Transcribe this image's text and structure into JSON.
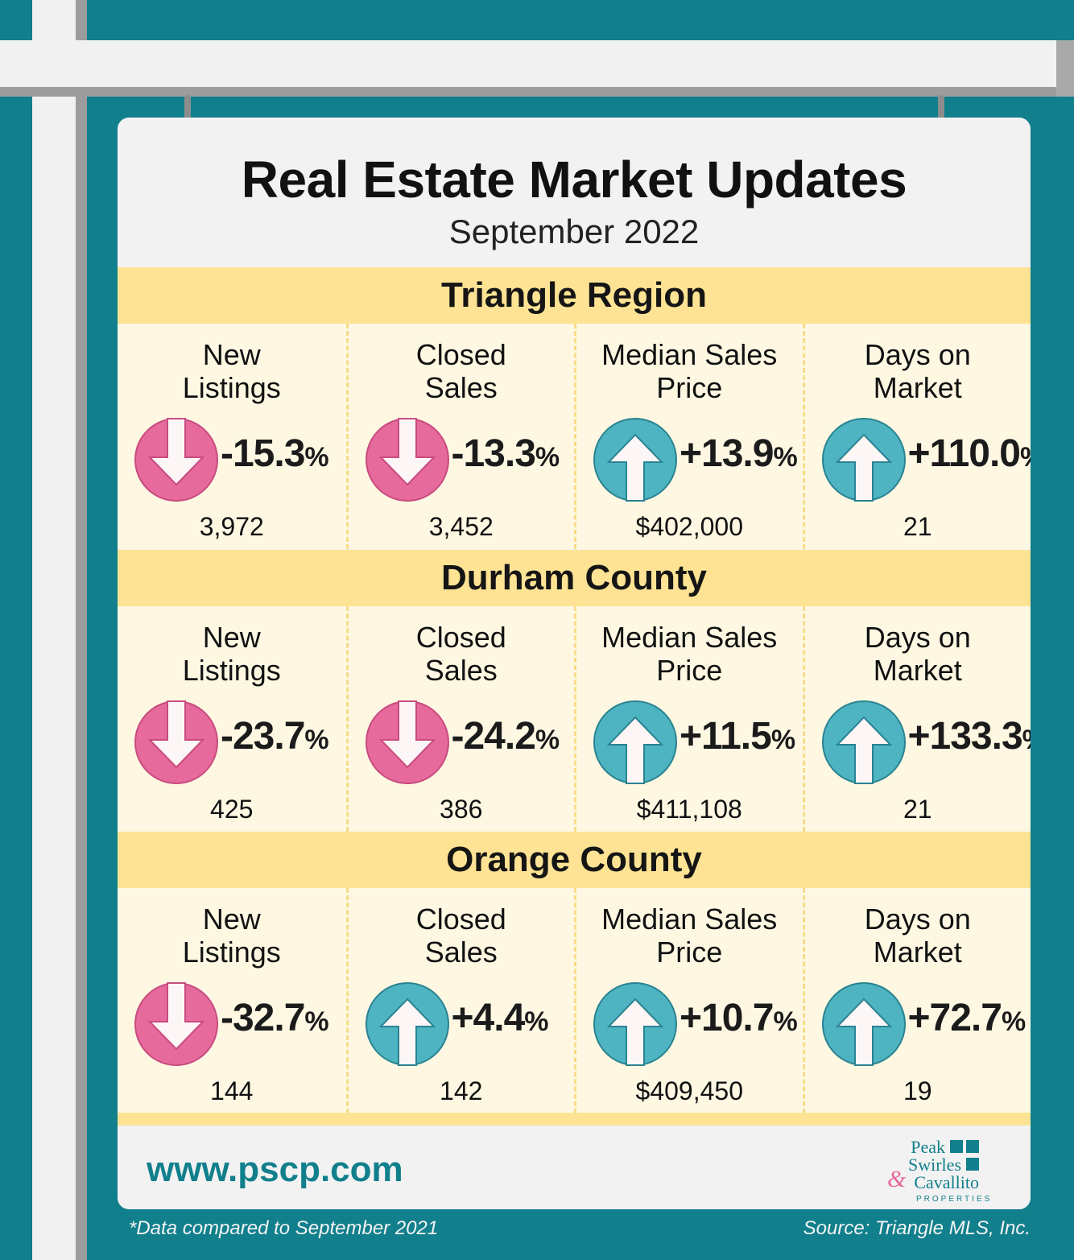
{
  "title": "Real Estate Market Updates",
  "subtitle": "September 2022",
  "colors": {
    "down": "#e66a9c",
    "up": "#4fb4c2",
    "band": "#fde393",
    "teal": "#117f8c"
  },
  "regions": [
    {
      "name": "Triangle Region",
      "metrics": [
        {
          "label1": "New",
          "label2": "Listings",
          "dir": "down",
          "pct": "-15.3",
          "unit": "%",
          "value": "3,972"
        },
        {
          "label1": "Closed",
          "label2": "Sales",
          "dir": "down",
          "pct": "-13.3",
          "unit": "%",
          "value": "3,452"
        },
        {
          "label1": "Median Sales",
          "label2": "Price",
          "dir": "up",
          "pct": "+13.9",
          "unit": "%",
          "value": "$402,000"
        },
        {
          "label1": "Days on",
          "label2": "Market",
          "dir": "up",
          "pct": "+110.0",
          "unit": "%",
          "value": "21"
        }
      ]
    },
    {
      "name": "Durham County",
      "metrics": [
        {
          "label1": "New",
          "label2": "Listings",
          "dir": "down",
          "pct": "-23.7",
          "unit": "%",
          "value": "425"
        },
        {
          "label1": "Closed",
          "label2": "Sales",
          "dir": "down",
          "pct": "-24.2",
          "unit": "%",
          "value": "386"
        },
        {
          "label1": "Median Sales",
          "label2": "Price",
          "dir": "up",
          "pct": "+11.5",
          "unit": "%",
          "value": "$411,108"
        },
        {
          "label1": "Days on",
          "label2": "Market",
          "dir": "up",
          "pct": "+133.3",
          "unit": "%",
          "value": "21"
        }
      ]
    },
    {
      "name": "Orange County",
      "metrics": [
        {
          "label1": "New",
          "label2": "Listings",
          "dir": "down",
          "pct": "-32.7",
          "unit": "%",
          "value": "144"
        },
        {
          "label1": "Closed",
          "label2": "Sales",
          "dir": "up",
          "pct": "+4.4",
          "unit": "%",
          "value": "142"
        },
        {
          "label1": "Median Sales",
          "label2": "Price",
          "dir": "up",
          "pct": "+10.7",
          "unit": "%",
          "value": "$409,450"
        },
        {
          "label1": "Days on",
          "label2": "Market",
          "dir": "up",
          "pct": "+72.7",
          "unit": "%",
          "value": "19"
        }
      ]
    }
  ],
  "website": "www.pscp.com",
  "logo": {
    "line1": "Peak",
    "line2": "Swirles",
    "amp": "&",
    "line3": "Cavallito",
    "sub": "PROPERTIES"
  },
  "footnote": "*Data compared to September 2021",
  "source": "Source: Triangle MLS, Inc."
}
